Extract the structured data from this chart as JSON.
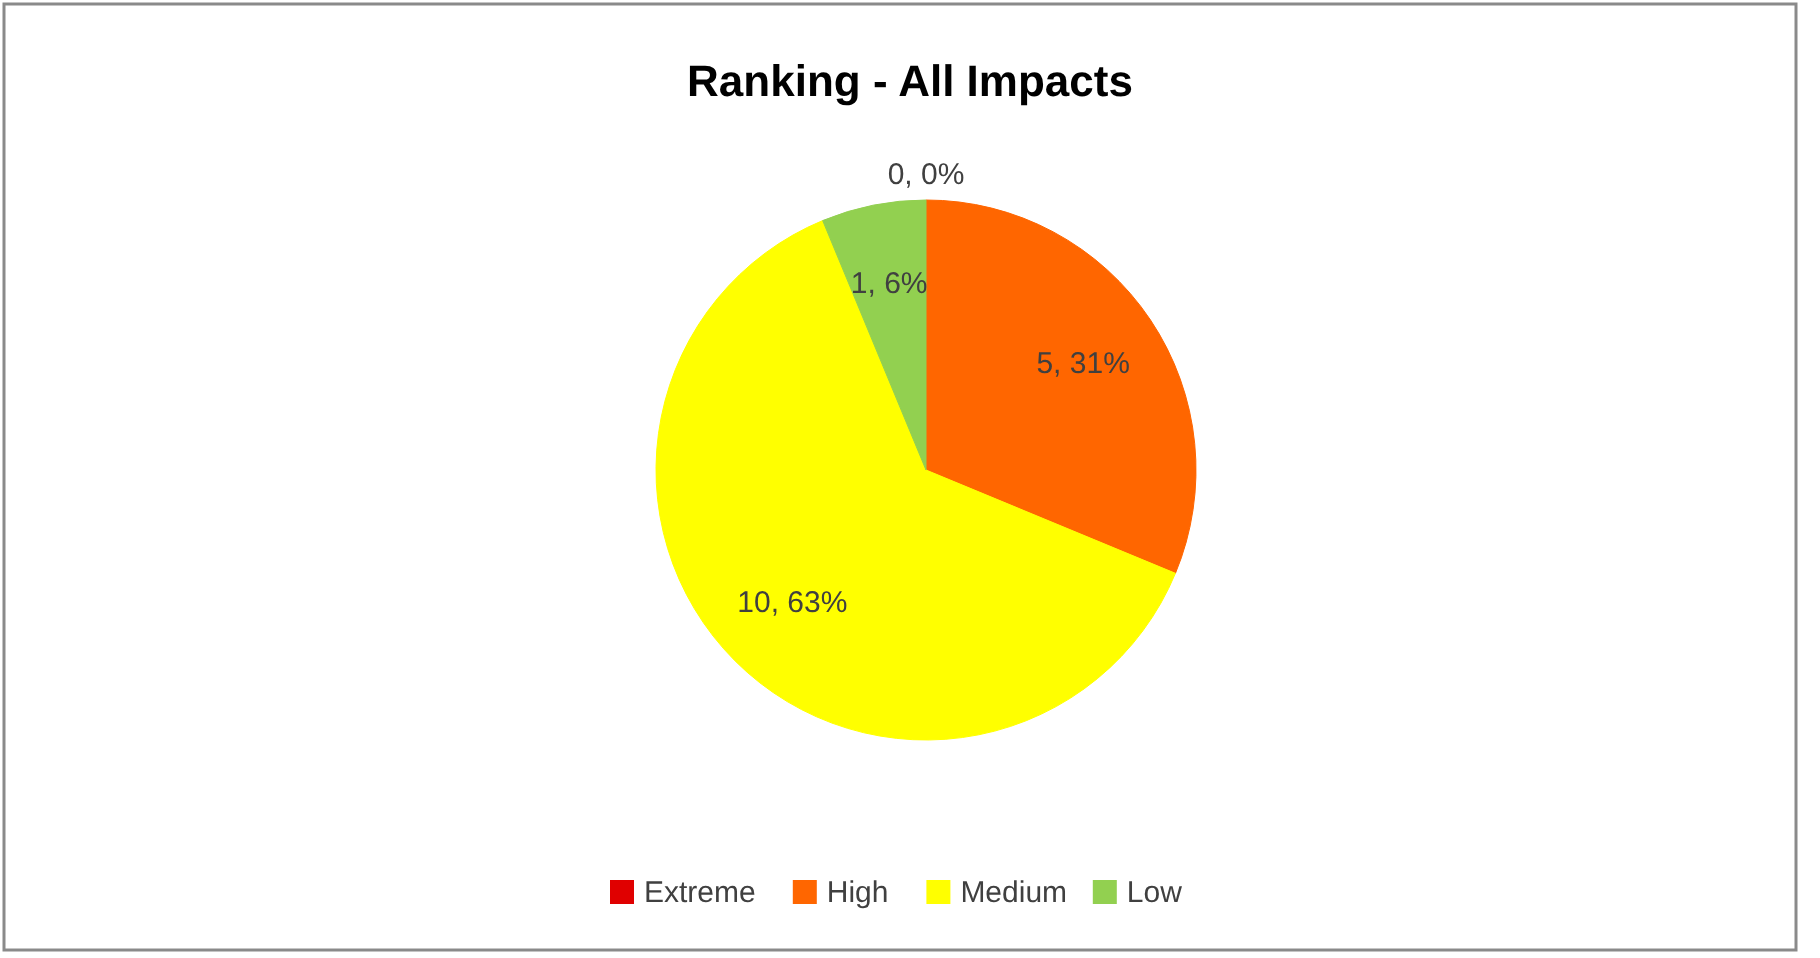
{
  "chart_data": {
    "type": "pie",
    "title": "Ranking - All Impacts",
    "categories": [
      "Extreme",
      "High",
      "Medium",
      "Low"
    ],
    "values": [
      0,
      5,
      10,
      1
    ],
    "colors": [
      "#e00000",
      "#ff6600",
      "#ffff00",
      "#92d050"
    ],
    "value_labels": [
      "0, 0%",
      "5, 31%",
      "10, 63%",
      "1, 6%"
    ],
    "legend": "bottom"
  }
}
